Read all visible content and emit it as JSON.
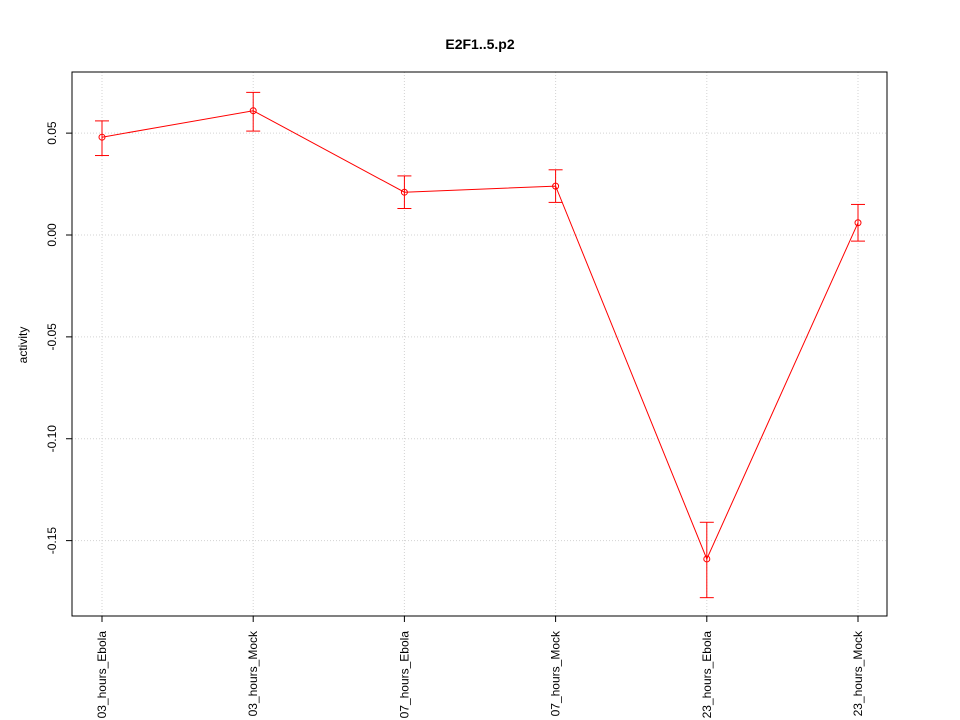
{
  "chart_data": {
    "type": "line",
    "title": "E2F1..5.p2",
    "xlabel": "",
    "ylabel": "activity",
    "categories": [
      "03_hours_Ebola",
      "03_hours_Mock",
      "07_hours_Ebola",
      "07_hours_Mock",
      "23_hours_Ebola",
      "23_hours_Mock"
    ],
    "series": [
      {
        "values": [
          0.048,
          0.061,
          0.021,
          0.024,
          -0.159,
          0.006
        ],
        "error_low": [
          0.039,
          0.051,
          0.013,
          0.016,
          -0.178,
          -0.003
        ],
        "error_high": [
          0.056,
          0.07,
          0.029,
          0.032,
          -0.141,
          0.015
        ],
        "color": "#ff0000"
      }
    ],
    "ylim": [
      -0.187,
      0.08
    ],
    "yticks": [
      -0.15,
      -0.1,
      -0.05,
      0.0,
      0.05
    ],
    "ytick_labels": [
      "-0.15",
      "-0.10",
      "-0.05",
      "0.00",
      "0.05"
    ],
    "grid": true,
    "grid_color": "#d3d3d3",
    "line_color": "#ff0000"
  }
}
